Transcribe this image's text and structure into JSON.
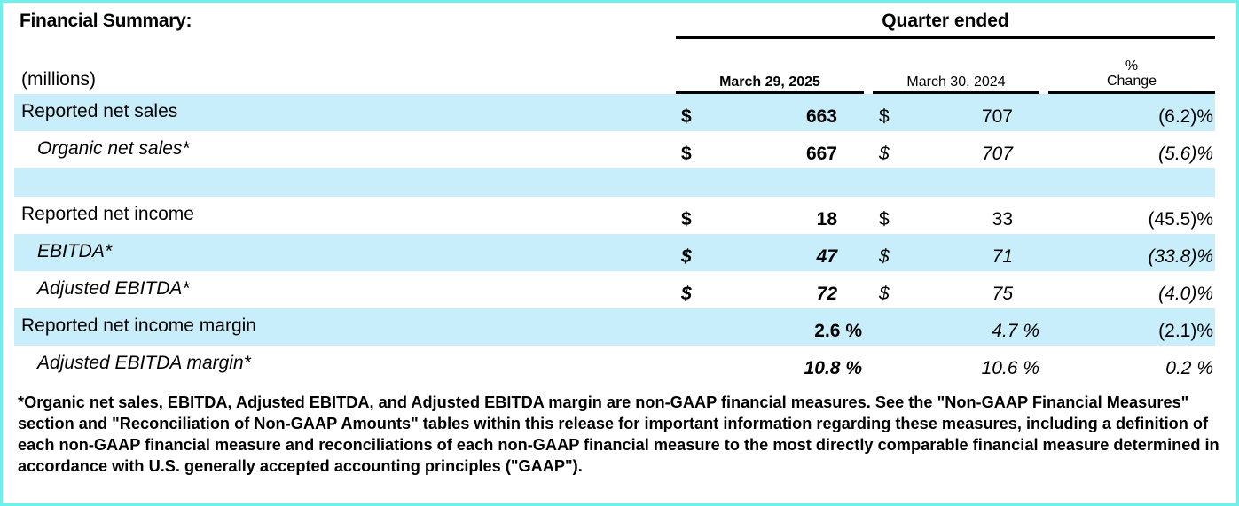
{
  "header": {
    "title": "Financial Summary:",
    "period_group": "Quarter ended",
    "units": "(millions)",
    "col_current": "March 29, 2025",
    "col_prior": "March 30, 2024",
    "col_change_top": "%",
    "col_change_bottom": "Change"
  },
  "rows": [
    {
      "label": "Reported net sales",
      "c_sym": "$",
      "c_val": "663",
      "p_sym": "$",
      "p_val": "707",
      "chg": "(6.2)%"
    },
    {
      "label": "Organic net sales*",
      "c_sym": "$",
      "c_val": "667",
      "p_sym": "$",
      "p_val": "707",
      "chg": "(5.6)%"
    },
    {
      "label": "",
      "c_sym": "",
      "c_val": "",
      "p_sym": "",
      "p_val": "",
      "chg": ""
    },
    {
      "label": "Reported net income",
      "c_sym": "$",
      "c_val": "18",
      "p_sym": "$",
      "p_val": "33",
      "chg": "(45.5)%"
    },
    {
      "label": "EBITDA*",
      "c_sym": "$",
      "c_val": "47",
      "p_sym": "$",
      "p_val": "71",
      "chg": "(33.8)%"
    },
    {
      "label": "Adjusted EBITDA*",
      "c_sym": "$",
      "c_val": "72",
      "p_sym": "$",
      "p_val": "75",
      "chg": "(4.0)%"
    },
    {
      "label": "Reported net income margin",
      "c_sym": "",
      "c_val": "2.6 %",
      "p_sym": "",
      "p_val": "4.7 %",
      "chg": "(2.1)%"
    },
    {
      "label": "Adjusted EBITDA margin*",
      "c_sym": "",
      "c_val": "10.8 %",
      "p_sym": "",
      "p_val": "10.6 %",
      "chg": "0.2 %"
    }
  ],
  "footnote": "*Organic net sales, EBITDA, Adjusted EBITDA, and Adjusted EBITDA margin are non-GAAP financial measures. See the \"Non-GAAP Financial Measures\" section and \"Reconciliation of Non-GAAP Amounts\" tables within this release for important information regarding these measures, including a definition of each non-GAAP financial measure and reconciliations of each non-GAAP financial measure to the most directly comparable financial measure determined in accordance with U.S. generally accepted accounting principles (\"GAAP\").",
  "colors": {
    "band": "#c9eefb",
    "frame": "#6ff0ea"
  }
}
